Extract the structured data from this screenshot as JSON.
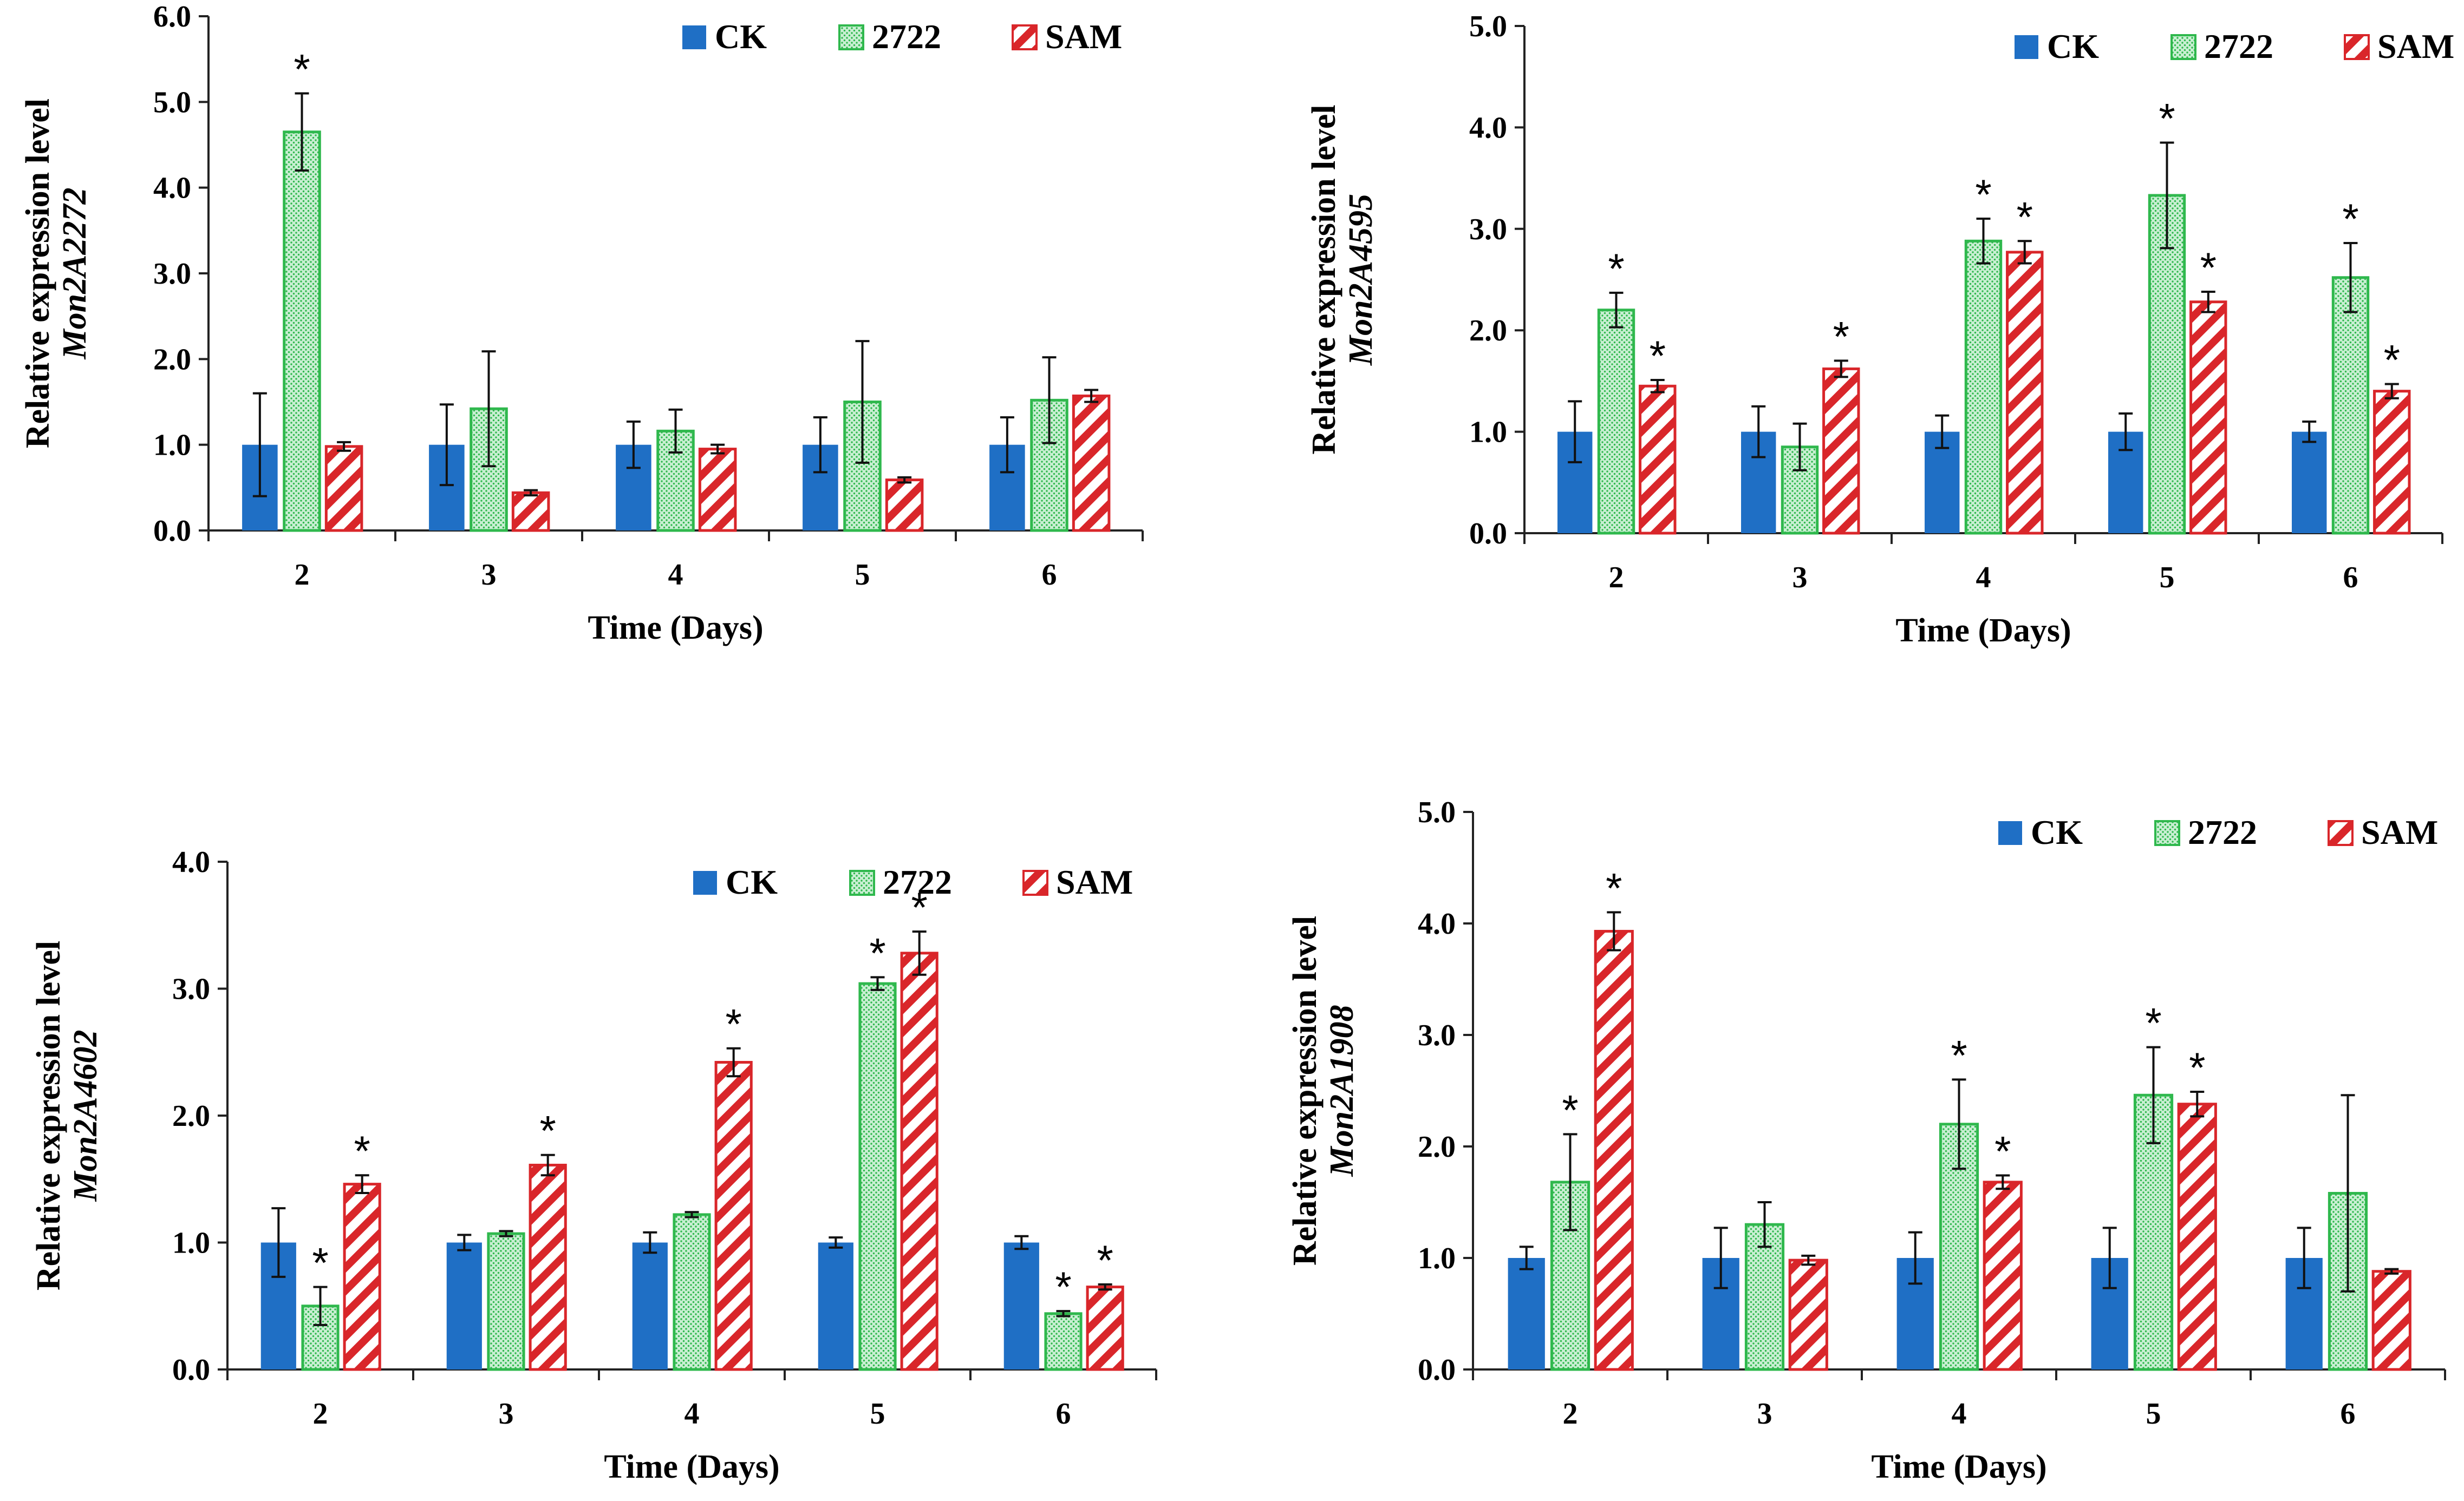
{
  "colors": {
    "CK": "#1f6fc5",
    "2722": "#2fb84d",
    "2722_bg": "#c8efd2",
    "SAM": "#d9262a"
  },
  "chart_data": [
    {
      "type": "bar",
      "panel": "top-left",
      "xlabel": "Time (Days)",
      "ylabel": "Relative expression level",
      "ylabel_gene": "Mon2A2272",
      "categories": [
        "2",
        "3",
        "4",
        "5",
        "6"
      ],
      "ylim": [
        0,
        6
      ],
      "yticks": [
        "0.0",
        "1.0",
        "2.0",
        "3.0",
        "4.0",
        "5.0",
        "6.0"
      ],
      "legend": [
        "CK",
        "2722",
        "SAM"
      ],
      "legend_position": "top-right",
      "series": [
        {
          "name": "CK",
          "values": [
            1.0,
            1.0,
            1.0,
            1.0,
            1.0
          ],
          "errors": [
            0.6,
            0.47,
            0.27,
            0.32,
            0.32
          ],
          "significant": [
            false,
            false,
            false,
            false,
            false
          ]
        },
        {
          "name": "2722",
          "values": [
            4.65,
            1.42,
            1.16,
            1.5,
            1.52
          ],
          "errors": [
            0.45,
            0.67,
            0.25,
            0.71,
            0.5
          ],
          "significant": [
            true,
            false,
            false,
            false,
            false
          ]
        },
        {
          "name": "SAM",
          "values": [
            0.98,
            0.44,
            0.95,
            0.59,
            1.57
          ],
          "errors": [
            0.05,
            0.03,
            0.05,
            0.03,
            0.07
          ],
          "significant": [
            false,
            false,
            false,
            false,
            false
          ]
        }
      ]
    },
    {
      "type": "bar",
      "panel": "top-right",
      "xlabel": "Time (Days)",
      "ylabel": "Relative expression level",
      "ylabel_gene": "Mon2A4595",
      "categories": [
        "2",
        "3",
        "4",
        "5",
        "6"
      ],
      "ylim": [
        0,
        5
      ],
      "yticks": [
        "0.0",
        "1.0",
        "2.0",
        "3.0",
        "4.0",
        "5.0"
      ],
      "legend": [
        "CK",
        "2722",
        "SAM"
      ],
      "legend_position": "top-right",
      "series": [
        {
          "name": "CK",
          "values": [
            1.0,
            1.0,
            1.0,
            1.0,
            1.0
          ],
          "errors": [
            0.3,
            0.25,
            0.16,
            0.18,
            0.1
          ],
          "significant": [
            false,
            false,
            false,
            false,
            false
          ]
        },
        {
          "name": "2722",
          "values": [
            2.2,
            0.85,
            2.88,
            3.33,
            2.52
          ],
          "errors": [
            0.17,
            0.23,
            0.22,
            0.52,
            0.34
          ],
          "significant": [
            true,
            false,
            true,
            true,
            true
          ]
        },
        {
          "name": "SAM",
          "values": [
            1.45,
            1.62,
            2.77,
            2.28,
            1.4
          ],
          "errors": [
            0.06,
            0.08,
            0.11,
            0.1,
            0.07
          ],
          "significant": [
            true,
            true,
            true,
            true,
            true
          ]
        }
      ]
    },
    {
      "type": "bar",
      "panel": "bottom-left",
      "xlabel": "Time (Days)",
      "ylabel": "Relative expression level",
      "ylabel_gene": "Mon2A4602",
      "categories": [
        "2",
        "3",
        "4",
        "5",
        "6"
      ],
      "ylim": [
        0,
        4
      ],
      "yticks": [
        "0.0",
        "1.0",
        "2.0",
        "3.0",
        "4.0"
      ],
      "legend": [
        "CK",
        "2722",
        "SAM"
      ],
      "legend_position": "top-right",
      "series": [
        {
          "name": "CK",
          "values": [
            1.0,
            1.0,
            1.0,
            1.0,
            1.0
          ],
          "errors": [
            0.27,
            0.06,
            0.08,
            0.04,
            0.05
          ],
          "significant": [
            false,
            false,
            false,
            false,
            false
          ]
        },
        {
          "name": "2722",
          "values": [
            0.5,
            1.07,
            1.22,
            3.04,
            0.44
          ],
          "errors": [
            0.15,
            0.02,
            0.02,
            0.05,
            0.02
          ],
          "significant": [
            true,
            false,
            false,
            true,
            true
          ]
        },
        {
          "name": "SAM",
          "values": [
            1.46,
            1.61,
            2.42,
            3.28,
            0.65
          ],
          "errors": [
            0.07,
            0.08,
            0.11,
            0.17,
            0.02
          ],
          "significant": [
            true,
            true,
            true,
            true,
            true
          ]
        }
      ]
    },
    {
      "type": "bar",
      "panel": "bottom-right",
      "xlabel": "Time (Days)",
      "ylabel": "Relative expression level",
      "ylabel_gene": "Mon2A1908",
      "categories": [
        "2",
        "3",
        "4",
        "5",
        "6"
      ],
      "ylim": [
        0,
        5
      ],
      "yticks": [
        "0.0",
        "1.0",
        "2.0",
        "3.0",
        "4.0",
        "5.0"
      ],
      "legend": [
        "CK",
        "2722",
        "SAM"
      ],
      "legend_position": "top-right",
      "series": [
        {
          "name": "CK",
          "values": [
            1.0,
            1.0,
            1.0,
            1.0,
            1.0
          ],
          "errors": [
            0.1,
            0.27,
            0.23,
            0.27,
            0.27
          ],
          "significant": [
            false,
            false,
            false,
            false,
            false
          ]
        },
        {
          "name": "2722",
          "values": [
            1.68,
            1.3,
            2.2,
            2.46,
            1.58
          ],
          "errors": [
            0.43,
            0.2,
            0.4,
            0.43,
            0.88
          ],
          "significant": [
            true,
            false,
            true,
            true,
            false
          ]
        },
        {
          "name": "SAM",
          "values": [
            3.93,
            0.98,
            1.68,
            2.38,
            0.88
          ],
          "errors": [
            0.17,
            0.04,
            0.06,
            0.11,
            0.02
          ],
          "significant": [
            true,
            false,
            true,
            true,
            false
          ]
        }
      ]
    }
  ]
}
